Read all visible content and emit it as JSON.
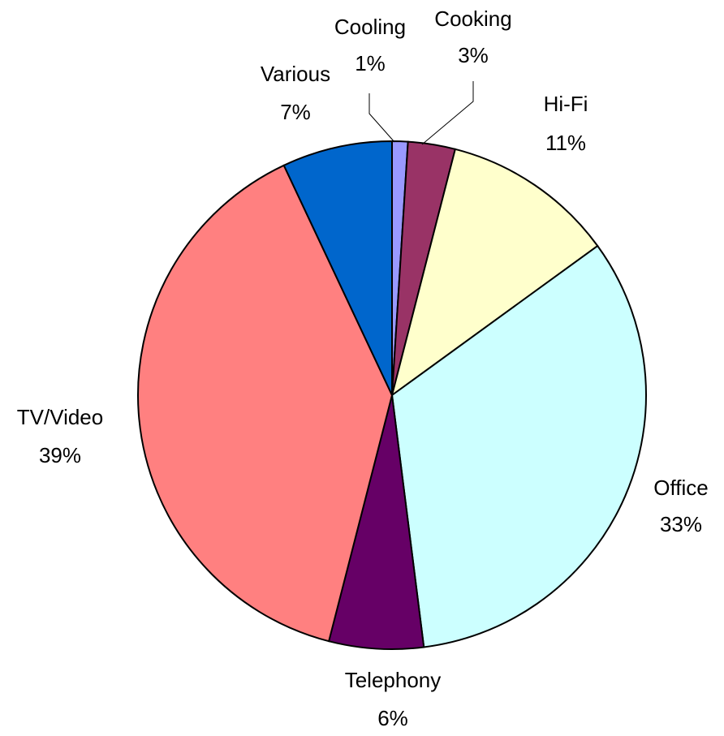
{
  "chart_data": {
    "type": "pie",
    "categories": [
      "Cooling",
      "Cooking",
      "Hi-Fi",
      "Office",
      "Telephony",
      "TV/Video",
      "Various"
    ],
    "values": [
      1,
      3,
      11,
      33,
      6,
      39,
      7
    ],
    "value_labels": [
      "1%",
      "3%",
      "11%",
      "33%",
      "6%",
      "39%",
      "7%"
    ],
    "colors": [
      "#9999ff",
      "#993366",
      "#ffffcc",
      "#ccffff",
      "#660066",
      "#ff8080",
      "#0066cc"
    ]
  }
}
